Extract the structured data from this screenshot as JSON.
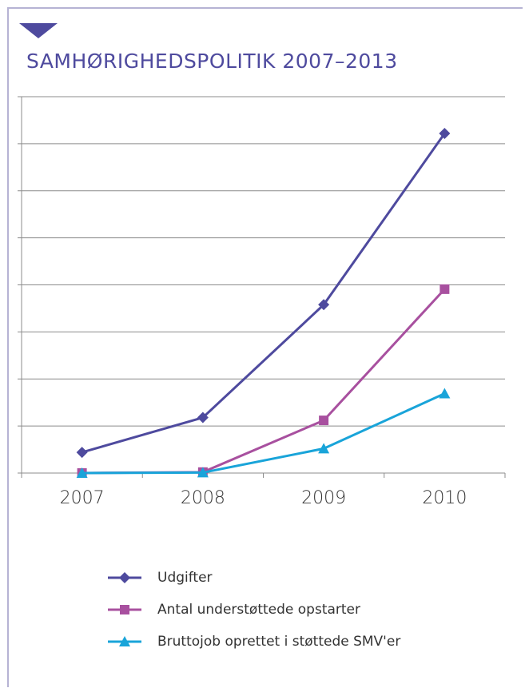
{
  "header": {
    "title": "SAMHØRIGHEDSPOLITIK 2007–2013"
  },
  "colors": {
    "accent": "#4e4a9e",
    "frame": "#b6b3d4"
  },
  "chart_data": {
    "type": "line",
    "title": "SAMHØRIGHEDSPOLITIK 2007–2013",
    "categories": [
      "2007",
      "2008",
      "2009",
      "2010"
    ],
    "ylim": [
      0,
      7
    ],
    "grid": true,
    "legend": "bottom",
    "y_tick_labels_shown": false,
    "series": [
      {
        "name": "Udgifter",
        "values": [
          0.44,
          1.18,
          3.58,
          7.22
        ],
        "color": "#4e4a9e",
        "marker": "diamond"
      },
      {
        "name": "Antal understøttede opstarter",
        "values": [
          0.0,
          0.02,
          1.12,
          3.91
        ],
        "color": "#a8509f",
        "marker": "square"
      },
      {
        "name": "Bruttojob oprettet i støttede SMV'er",
        "values": [
          0.0,
          0.01,
          0.52,
          1.69
        ],
        "color": "#19a4d9",
        "marker": "triangle"
      }
    ]
  }
}
